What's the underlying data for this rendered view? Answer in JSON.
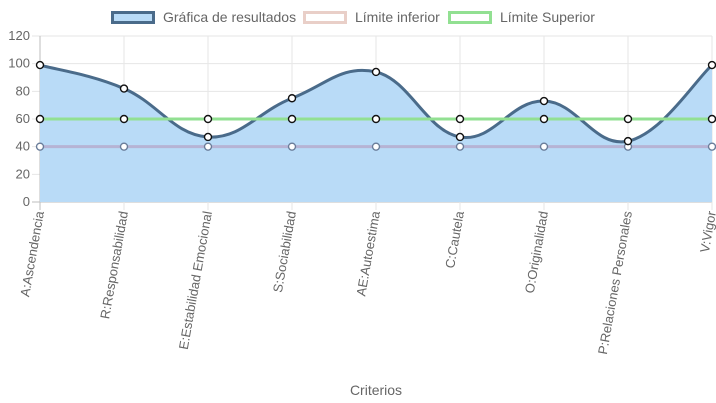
{
  "chart_data": {
    "type": "line",
    "categories": [
      "A:Ascendencia",
      "R:Responsabilidad",
      "E:Estabilidad Emocional",
      "S:Sociabilidad",
      "AE:Autoestima",
      "C:Cautela",
      "O:Originalidad",
      "P:Relaciones Personales",
      "V:Vigor"
    ],
    "series": [
      {
        "name": "Gráfica de resultados",
        "values": [
          99,
          82,
          47,
          75,
          94,
          47,
          73,
          44,
          99
        ],
        "line_color": "#4a6b8a",
        "fill_color": "#b9dbf7",
        "filled": true
      },
      {
        "name": "Límite inferior",
        "values": [
          40,
          40,
          40,
          40,
          40,
          40,
          40,
          40,
          40
        ],
        "line_color": "#b6b3d4",
        "legend_border": "#e9cfc8",
        "legend_fill": "#ffffff",
        "filled": false
      },
      {
        "name": "Límite Superior",
        "values": [
          60,
          60,
          60,
          60,
          60,
          60,
          60,
          60,
          60
        ],
        "line_color": "#92e092",
        "legend_border": "#92e092",
        "legend_fill": "#ffffff",
        "filled": false
      }
    ],
    "xlabel": "Criterios",
    "ylabel": "",
    "ylim": [
      0,
      120
    ],
    "yticks": [
      0,
      20,
      40,
      60,
      80,
      100,
      120
    ],
    "grid": true,
    "legend_position": "top-center"
  }
}
